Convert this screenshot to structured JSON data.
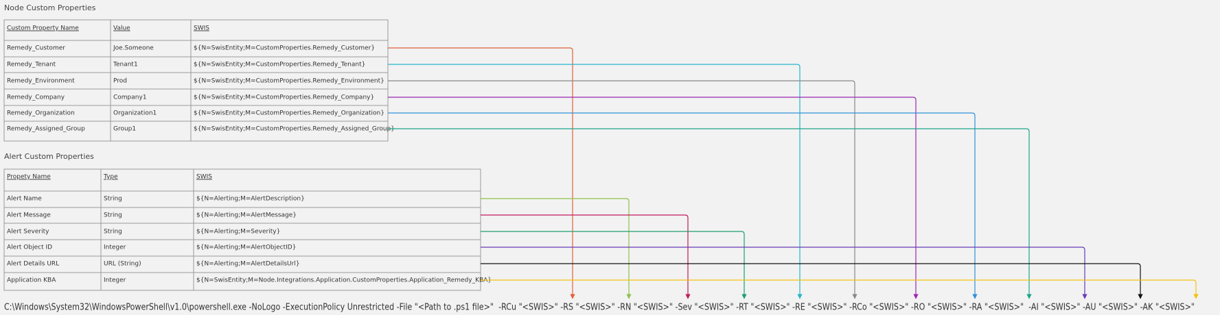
{
  "node_table": {
    "title": "Node Custom Properties",
    "headers": [
      "Custom Property Name",
      "Value",
      "SWIS"
    ],
    "rows": [
      [
        "Remedy_Customer",
        "Joe.Someone",
        "${N=SwisEntity;M=CustomProperties.Remedy_Customer}"
      ],
      [
        "Remedy_Tenant",
        "Tenant1",
        "${N=SwisEntity;M=CustomProperties.Remedy_Tenant}"
      ],
      [
        "Remedy_Environment",
        "Prod",
        "${N=SwisEntity;M=CustomProperties.Remedy_Environment}"
      ],
      [
        "Remedy_Company",
        "Company1",
        "${N=SwisEntity;M=CustomProperties.Remedy_Company}"
      ],
      [
        "Remedy_Organization",
        "Organization1",
        "${N=SwisEntity;M=CustomProperties.Remedy_Organization}"
      ],
      [
        "Remedy_Assigned_Group",
        "Group1",
        "${N=SwisEntity;M=CustomProperties.Remedy_Assigned_Group}"
      ]
    ]
  },
  "alert_table": {
    "title": "Alert Custom Properties",
    "headers": [
      "Propety Name",
      "Type",
      "SWIS"
    ],
    "rows": [
      [
        "Alert Name",
        "String",
        "${N=Alerting;M=AlertDescription}"
      ],
      [
        "Alert Message",
        "String",
        "${N=Alerting;M=AlertMessage}"
      ],
      [
        "Alert Severity",
        "String",
        "${N=Alerting;M=Severity}"
      ],
      [
        "Alert Object ID",
        "Integer",
        "${N=Alerting;M=AlertObjectID}"
      ],
      [
        "Alert Details URL",
        "URL (String)",
        "${N=Alerting;M=AlertDetailsUrl}"
      ],
      [
        "Application KBA",
        "Integer",
        "${N=SwisEntity;M=Node.Integrations.Application.CustomProperties.Application_Remedy_KBA}"
      ]
    ]
  },
  "command": "C:\\Windows\\System32\\WindowsPowerShell\\v1.0\\powershell.exe -NoLogo -ExecutionPolicy Unrestricted -File \"<Path to .ps1 file>\"  -RCu \"<SWIS>\" -RS \"<SWIS>\" -RN \"<SWIS>\" -Sev \"<SWIS>\" -RT \"<SWIS>\" -RE \"<SWIS>\" -RCo \"<SWIS>\" -RO \"<SWIS>\" -RA \"<SWIS>\"  -AI \"<SWIS>\" -AU \"<SWIS>\" -AK \"<SWIS>\""
}
